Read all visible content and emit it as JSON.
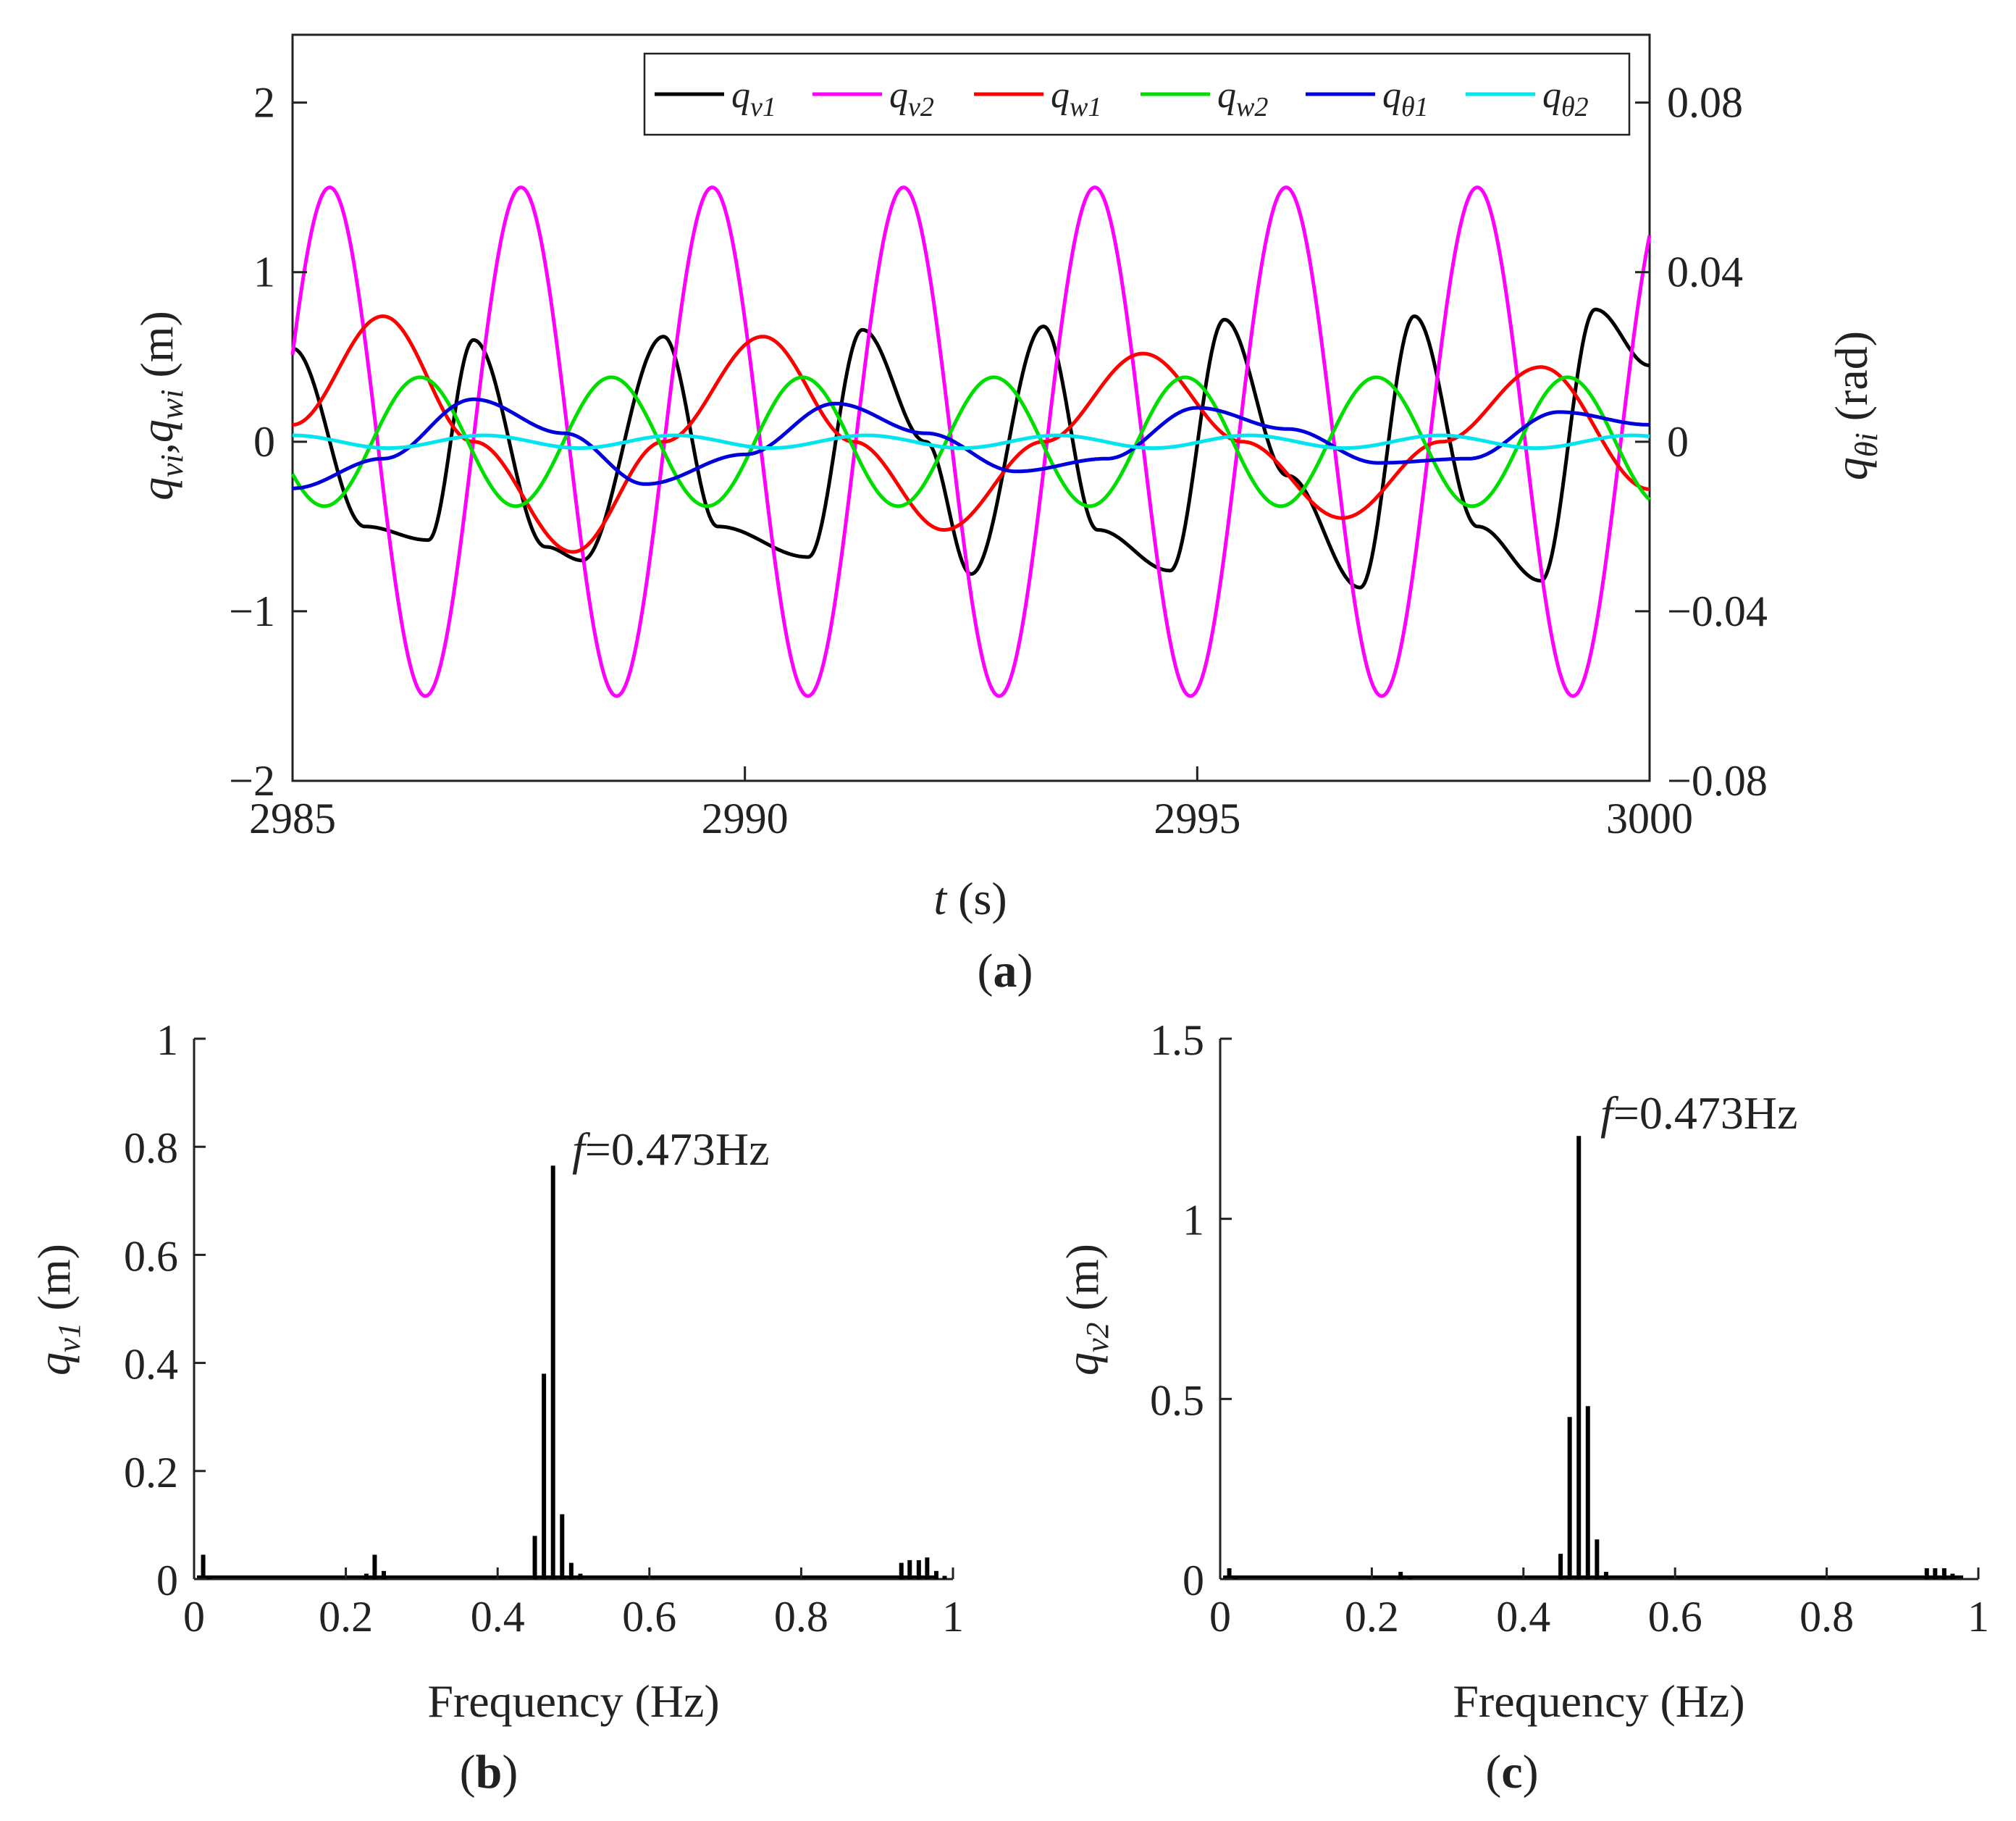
{
  "chart_data": [
    {
      "panel": "(a)",
      "panel_letter": "a",
      "type": "line",
      "x": {
        "label_var": "t",
        "label_unit": " (s)",
        "range": [
          2985,
          3000
        ],
        "ticks": [
          2985,
          2990,
          2995,
          3000
        ],
        "tick_labels": [
          "2985",
          "2990",
          "2995",
          "3000"
        ]
      },
      "y_left": {
        "label": "q_vi, q_wi (m)",
        "label_text": "(m)",
        "range": [
          -2,
          2.4
        ],
        "ticks": [
          -2,
          -1,
          0,
          1,
          2
        ],
        "tick_labels": [
          "−2",
          "−1",
          "0",
          "1",
          "2"
        ]
      },
      "y_right": {
        "label": "q_θi (rad)",
        "label_text": "(rad)",
        "range": [
          -0.08,
          0.096
        ],
        "ticks": [
          -0.08,
          -0.04,
          0,
          0.04,
          0.08
        ],
        "tick_labels": [
          "−0.08",
          "−0.04",
          "0",
          "0.04",
          "0.08"
        ]
      },
      "legend_position": "top-right",
      "series": [
        {
          "name": "q_v1",
          "label_main": "q",
          "label_sub": "v1",
          "color": "#000000",
          "axis": "left",
          "t": [
            2985.0,
            2985.8,
            2986.5,
            2987.0,
            2987.8,
            2988.2,
            2989.1,
            2989.7,
            2990.7,
            2991.3,
            2992.0,
            2992.5,
            2993.3,
            2993.9,
            2994.7,
            2995.3,
            2996.0,
            2996.8,
            2997.4,
            2998.1,
            2998.8,
            2999.4,
            3000.0
          ],
          "v": [
            0.55,
            -0.5,
            -0.58,
            0.6,
            -0.62,
            -0.7,
            0.62,
            -0.5,
            -0.68,
            0.66,
            0.0,
            -0.78,
            0.68,
            -0.52,
            -0.76,
            0.72,
            -0.2,
            -0.86,
            0.74,
            -0.5,
            -0.82,
            0.78,
            0.45
          ]
        },
        {
          "name": "q_v2",
          "label_main": "q",
          "label_sub": "v2",
          "color": "#ff00ff",
          "axis": "left",
          "amplitude": 1.5,
          "frequency_hz": 0.473,
          "phase_deg": 20
        },
        {
          "name": "q_w1",
          "label_main": "q",
          "label_sub": "w1",
          "color": "#ff0000",
          "axis": "left",
          "t": [
            2985.0,
            2986.0,
            2987.0,
            2988.1,
            2989.1,
            2990.2,
            2991.2,
            2992.2,
            2993.3,
            2994.4,
            2995.5,
            2996.6,
            2997.7,
            2998.8,
            3000.0
          ],
          "v": [
            0.1,
            0.74,
            0.0,
            -0.65,
            0.0,
            0.62,
            0.0,
            -0.52,
            0.0,
            0.52,
            0.0,
            -0.45,
            0.0,
            0.44,
            -0.28
          ]
        },
        {
          "name": "q_w2",
          "label_main": "q",
          "label_sub": "w2",
          "color": "#00dd00",
          "axis": "left",
          "amplitude": 0.38,
          "frequency_hz": 0.473,
          "phase_deg": 210
        },
        {
          "name": "q_θ1",
          "label_main": "q",
          "label_sub": "θ1",
          "color": "#0000dd",
          "axis": "right",
          "t": [
            2985.0,
            2986.0,
            2987.0,
            2988.0,
            2988.9,
            2990.0,
            2991.0,
            2992.0,
            2993.0,
            2994.0,
            2995.0,
            2996.0,
            2997.0,
            2998.0,
            2999.0,
            3000.0
          ],
          "v": [
            -0.011,
            -0.004,
            0.01,
            0.002,
            -0.01,
            -0.003,
            0.009,
            0.002,
            -0.007,
            -0.004,
            0.008,
            0.003,
            -0.005,
            -0.004,
            0.007,
            0.004
          ]
        },
        {
          "name": "q_θ2",
          "label_main": "q",
          "label_sub": "θ2",
          "color": "#00e5ee",
          "axis": "right",
          "amplitude": 0.0015,
          "frequency_hz": 0.473,
          "phase_deg": 90,
          "offset": 0.0
        }
      ]
    },
    {
      "panel": "(b)",
      "panel_letter": "b",
      "type": "bar",
      "title": "",
      "xlabel": "Frequency (Hz)",
      "ylabel_main": "q",
      "ylabel_sub": "v1",
      "ylabel_unit": " (m)",
      "xlim": [
        0,
        1
      ],
      "ylim": [
        0,
        1
      ],
      "xticks": [
        "0",
        "0.2",
        "0.4",
        "0.6",
        "0.8",
        "1"
      ],
      "yticks": [
        "0",
        "0.2",
        "0.4",
        "0.6",
        "0.8",
        "1"
      ],
      "annotation": {
        "label_var": "f",
        "label_rest": "=0.473Hz",
        "x": 0.473,
        "y": 0.765
      },
      "frequencies": [
        0.012,
        0.02,
        0.227,
        0.238,
        0.25,
        0.449,
        0.461,
        0.473,
        0.485,
        0.497,
        0.509,
        0.932,
        0.943,
        0.955,
        0.966,
        0.978,
        0.989
      ],
      "amplitudes": [
        0.045,
        0.006,
        0.01,
        0.045,
        0.015,
        0.08,
        0.38,
        0.765,
        0.12,
        0.03,
        0.01,
        0.03,
        0.035,
        0.035,
        0.04,
        0.015,
        0.006
      ]
    },
    {
      "panel": "(c)",
      "panel_letter": "c",
      "type": "bar",
      "title": "",
      "xlabel": "Frequency (Hz)",
      "ylabel_main": "q",
      "ylabel_sub": "v2",
      "ylabel_unit": " (m)",
      "xlim": [
        0,
        1
      ],
      "ylim": [
        0,
        1.5
      ],
      "xticks": [
        "0",
        "0.2",
        "0.4",
        "0.6",
        "0.8",
        "1"
      ],
      "yticks": [
        "0",
        "0.5",
        "1",
        "1.5"
      ],
      "ytick_values": [
        0,
        0.5,
        1,
        1.5
      ],
      "annotation": {
        "label_var": "f",
        "label_rest": "=0.473Hz",
        "x": 0.473,
        "y": 1.23
      },
      "frequencies": [
        0.012,
        0.02,
        0.238,
        0.25,
        0.449,
        0.461,
        0.473,
        0.485,
        0.497,
        0.509,
        0.932,
        0.943,
        0.955,
        0.966
      ],
      "amplitudes": [
        0.03,
        0.006,
        0.02,
        0.01,
        0.07,
        0.45,
        1.23,
        0.48,
        0.11,
        0.02,
        0.03,
        0.03,
        0.03,
        0.015
      ]
    }
  ]
}
